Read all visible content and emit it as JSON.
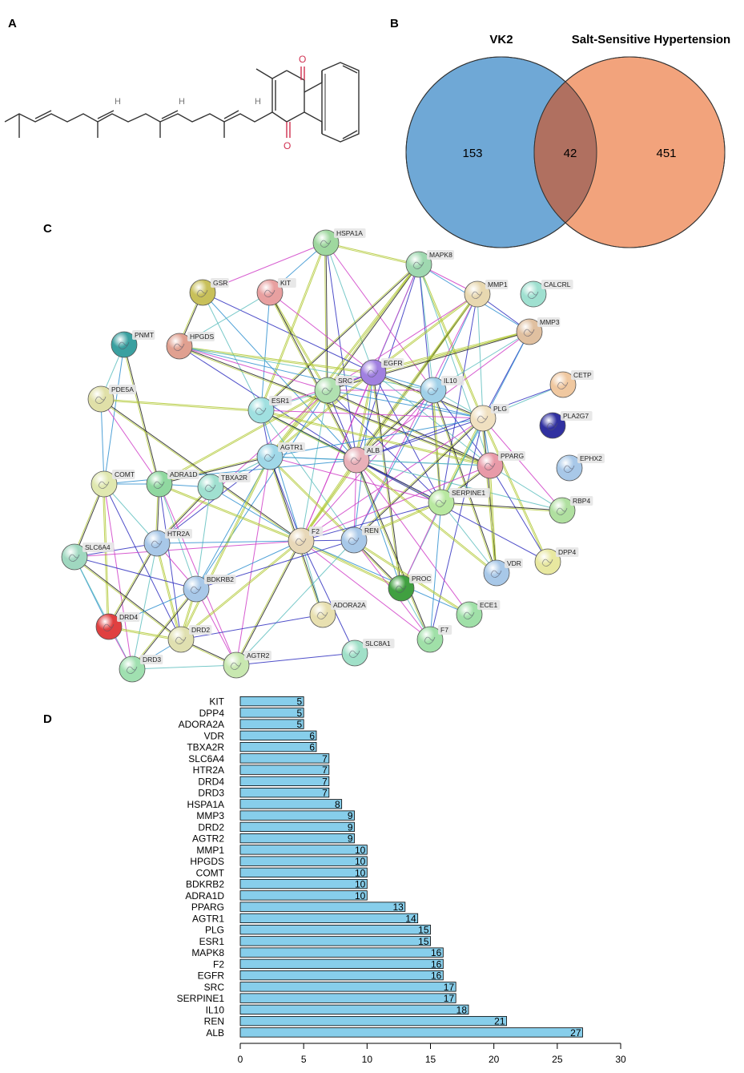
{
  "panels": {
    "a": "A",
    "b": "B",
    "c": "C",
    "d": "D"
  },
  "venn": {
    "left_label": "VK2",
    "right_label": "Salt-Sensitive Hypertension",
    "left_only": "153",
    "overlap": "42",
    "right_only": "451",
    "left_color": "#6fa8d6",
    "right_color": "#f0966a"
  },
  "network": {
    "nodes": [
      {
        "id": "HSPA1A",
        "color": "#9fd89f"
      },
      {
        "id": "MAPK8",
        "color": "#9fd8b0"
      },
      {
        "id": "GSR",
        "color": "#c8c05a"
      },
      {
        "id": "KIT",
        "color": "#e8a0a0"
      },
      {
        "id": "MMP1",
        "color": "#e8d8b0"
      },
      {
        "id": "CALCRL",
        "color": "#9fe0d0"
      },
      {
        "id": "PNMT",
        "color": "#3aa0a0"
      },
      {
        "id": "HPGDS",
        "color": "#e0a090"
      },
      {
        "id": "MMP3",
        "color": "#e0c0a0"
      },
      {
        "id": "EGFR",
        "color": "#a080e0"
      },
      {
        "id": "SRC",
        "color": "#b0e0b0"
      },
      {
        "id": "IL10",
        "color": "#a0d0e8"
      },
      {
        "id": "CETP",
        "color": "#f0c8a0"
      },
      {
        "id": "PDE5A",
        "color": "#e0e0a8"
      },
      {
        "id": "ESR1",
        "color": "#a0e0e0"
      },
      {
        "id": "PLG",
        "color": "#f0e0c0"
      },
      {
        "id": "PLA2G7",
        "color": "#3030a0"
      },
      {
        "id": "AGTR1",
        "color": "#a0d8e8"
      },
      {
        "id": "ALB",
        "color": "#e8b0b8"
      },
      {
        "id": "PPARG",
        "color": "#e89aa8"
      },
      {
        "id": "EPHX2",
        "color": "#a8c8e8"
      },
      {
        "id": "COMT",
        "color": "#e0e8b0"
      },
      {
        "id": "ADRA1D",
        "color": "#90d8a0"
      },
      {
        "id": "TBXA2R",
        "color": "#a0e0d0"
      },
      {
        "id": "SERPINE1",
        "color": "#b8e8a0"
      },
      {
        "id": "RBP4",
        "color": "#b0e0a0"
      },
      {
        "id": "HTR2A",
        "color": "#a8c8e8"
      },
      {
        "id": "F2",
        "color": "#e8d8b8"
      },
      {
        "id": "REN",
        "color": "#a8c8e8"
      },
      {
        "id": "SLC6A4",
        "color": "#a0d8c0"
      },
      {
        "id": "DPP4",
        "color": "#e8e8a0"
      },
      {
        "id": "VDR",
        "color": "#a8c8e8"
      },
      {
        "id": "BDKRB2",
        "color": "#a8c8e8"
      },
      {
        "id": "PROC",
        "color": "#40a040"
      },
      {
        "id": "ADORA2A",
        "color": "#e8e0b0"
      },
      {
        "id": "ECE1",
        "color": "#a0e0a8"
      },
      {
        "id": "DRD4",
        "color": "#e04040"
      },
      {
        "id": "DRD2",
        "color": "#e0e0b0"
      },
      {
        "id": "F7",
        "color": "#a0e0a8"
      },
      {
        "id": "SLC8A1",
        "color": "#a0e0c8"
      },
      {
        "id": "AGTR2",
        "color": "#c8e8b0"
      },
      {
        "id": "DRD3",
        "color": "#a0e0b0"
      }
    ]
  },
  "chart_data": {
    "type": "bar",
    "orientation": "horizontal",
    "categories": [
      "KIT",
      "DPP4",
      "ADORA2A",
      "VDR",
      "TBXA2R",
      "SLC6A4",
      "HTR2A",
      "DRD4",
      "DRD3",
      "HSPA1A",
      "MMP3",
      "DRD2",
      "AGTR2",
      "MMP1",
      "HPGDS",
      "COMT",
      "BDKRB2",
      "ADRA1D",
      "PPARG",
      "AGTR1",
      "PLG",
      "ESR1",
      "MAPK8",
      "F2",
      "EGFR",
      "SRC",
      "SERPINE1",
      "IL10",
      "REN",
      "ALB"
    ],
    "values": [
      5,
      5,
      5,
      6,
      6,
      7,
      7,
      7,
      7,
      8,
      9,
      9,
      9,
      10,
      10,
      10,
      10,
      10,
      13,
      14,
      15,
      15,
      16,
      16,
      16,
      17,
      17,
      18,
      21,
      27
    ],
    "value_labels": [
      "5",
      "5",
      "5",
      "6",
      "6",
      "7",
      "7",
      "7",
      "7",
      "8",
      "9",
      "9",
      "9",
      "10",
      "10",
      "10",
      "10",
      "10",
      "13",
      "14",
      "15",
      "15",
      "16",
      "16",
      "16",
      "17",
      "17",
      "18",
      "21",
      "27"
    ],
    "xlim": [
      0,
      30
    ],
    "xticks": [
      "0",
      "5",
      "10",
      "15",
      "20",
      "25",
      "30"
    ],
    "bar_color": "#87ceeb",
    "title": "",
    "xlabel": "",
    "ylabel": ""
  }
}
